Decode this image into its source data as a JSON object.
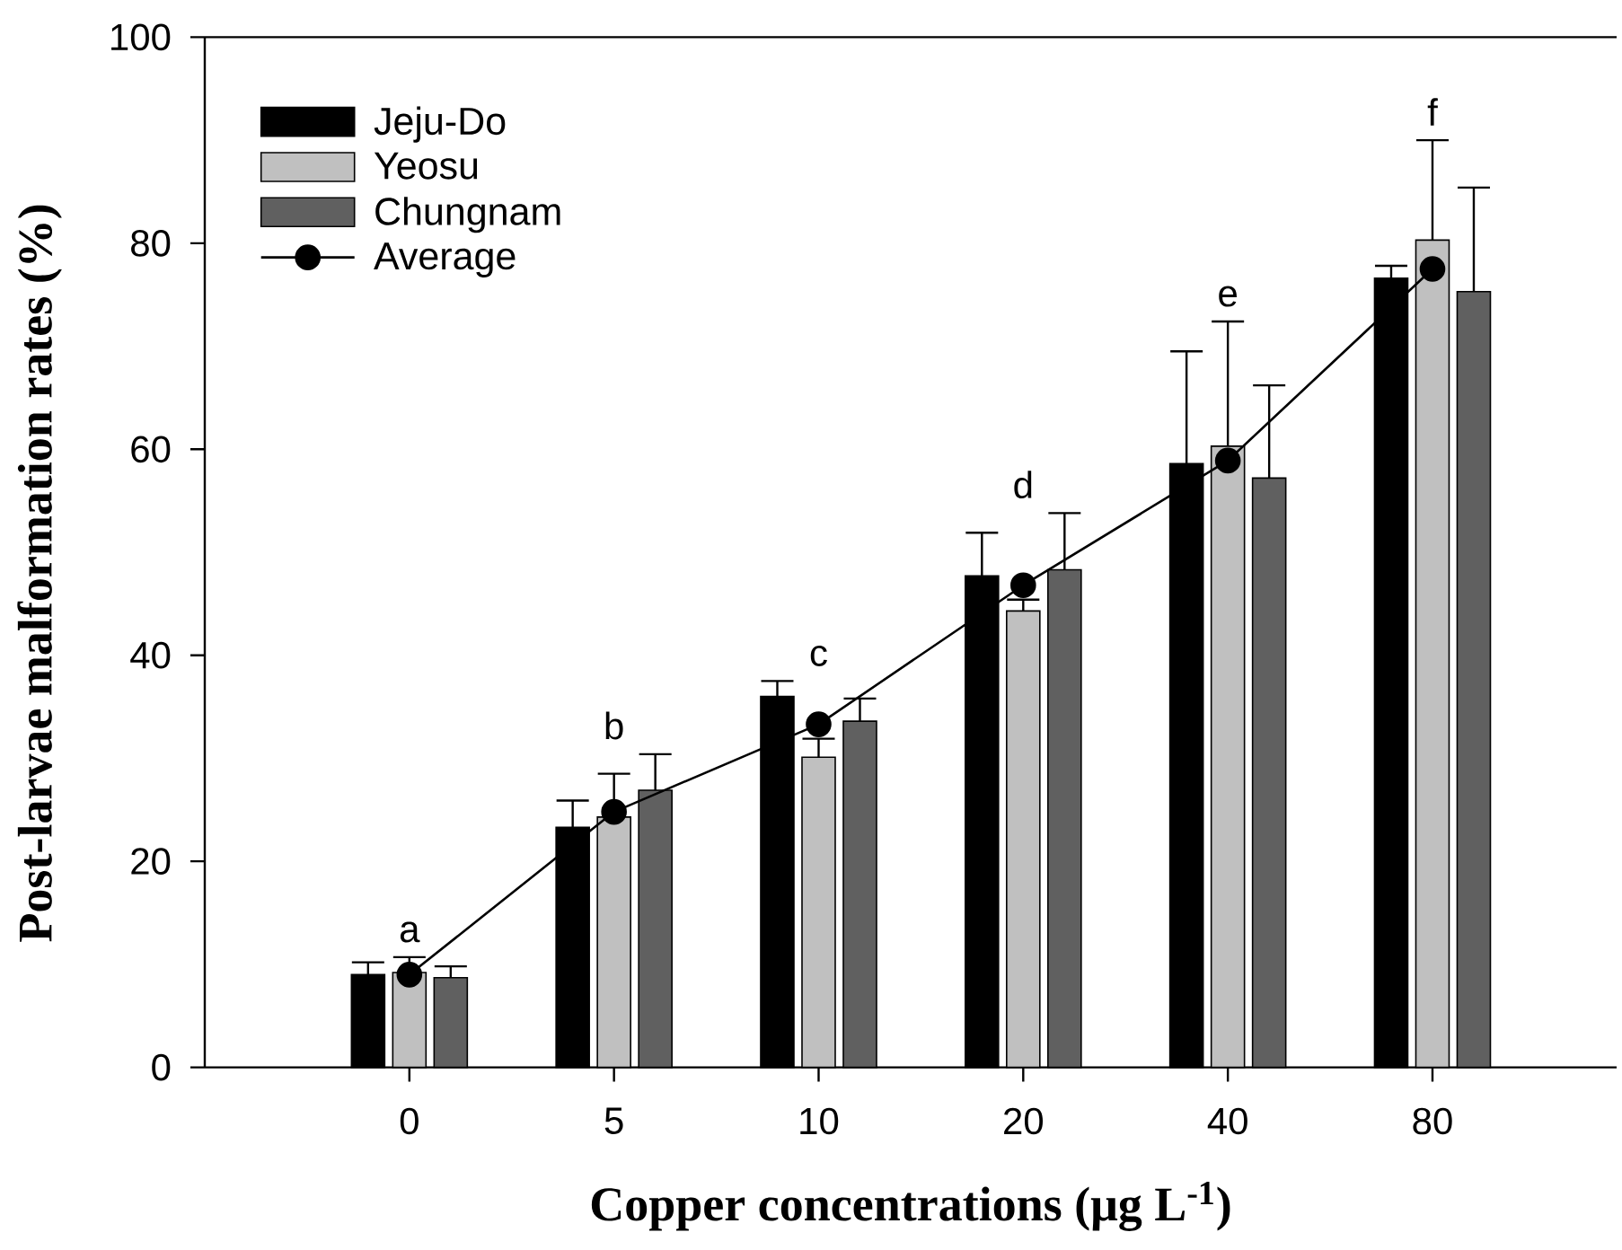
{
  "chart_data": {
    "type": "bar",
    "xlabel": "Copper concentrations (μg L$^{-1}$)",
    "ylabel": "Post-larvae malformation rates (%)",
    "categories": [
      "0",
      "5",
      "10",
      "20",
      "40",
      "80"
    ],
    "series": [
      {
        "name": "Jeju-Do",
        "color": "#000000",
        "values": [
          9.0,
          23.3,
          36.0,
          47.7,
          58.6,
          76.6
        ],
        "errors": [
          [
            9.0,
            10.2
          ],
          [
            23.3,
            25.9
          ],
          [
            36.0,
            37.5
          ],
          [
            47.7,
            51.9
          ],
          [
            58.6,
            69.5
          ],
          [
            76.6,
            77.8
          ]
        ]
      },
      {
        "name": "Yeosu",
        "color": "#c0c0c0",
        "values": [
          9.2,
          24.3,
          30.1,
          44.3,
          60.3,
          80.3
        ],
        "errors": [
          [
            9.2,
            10.7
          ],
          [
            24.3,
            28.5
          ],
          [
            30.1,
            31.9
          ],
          [
            44.3,
            45.4
          ],
          [
            60.3,
            72.4
          ],
          [
            80.3,
            90.0
          ]
        ]
      },
      {
        "name": "Chungnam",
        "color": "#606060",
        "values": [
          8.7,
          26.9,
          33.6,
          48.3,
          57.2,
          75.3
        ],
        "errors": [
          [
            8.7,
            9.8
          ],
          [
            26.9,
            30.4
          ],
          [
            33.6,
            35.8
          ],
          [
            48.3,
            53.8
          ],
          [
            57.2,
            66.2
          ],
          [
            75.3,
            85.4
          ]
        ]
      },
      {
        "name": "Average",
        "type": "line",
        "color": "#000000",
        "marker": "circle",
        "line_style": "solid",
        "values": [
          9.0,
          24.8,
          33.3,
          46.8,
          58.9,
          77.5
        ]
      }
    ],
    "ylim": [
      0,
      100
    ],
    "yticks": [
      0,
      20,
      40,
      60,
      80,
      100
    ],
    "legend": "top left",
    "annotations": [
      "a",
      "b",
      "c",
      "d",
      "e",
      "f"
    ]
  }
}
